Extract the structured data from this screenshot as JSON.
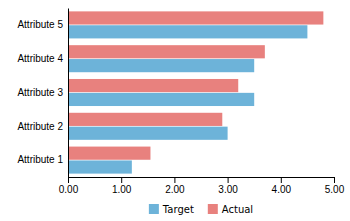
{
  "chart_data": {
    "type": "bar",
    "orientation": "horizontal",
    "categories": [
      "Attribute 1",
      "Attribute 2",
      "Attribute 3",
      "Attribute 4",
      "Attribute 5"
    ],
    "series": [
      {
        "name": "Target",
        "color": "#6db3d9",
        "values": [
          1.2,
          3.0,
          3.5,
          3.5,
          4.5
        ]
      },
      {
        "name": "Actual",
        "color": "#e8817e",
        "values": [
          1.55,
          2.9,
          3.2,
          3.7,
          4.8
        ]
      }
    ],
    "xlim": [
      0,
      5.0
    ],
    "xticks": [
      {
        "value": 0.0,
        "label": "0.00"
      },
      {
        "value": 1.0,
        "label": "1.00"
      },
      {
        "value": 2.0,
        "label": "2.00"
      },
      {
        "value": 3.0,
        "label": "3.00"
      },
      {
        "value": 4.0,
        "label": "4.00"
      },
      {
        "value": 5.0,
        "label": "5.00"
      }
    ],
    "grid": false,
    "legend": "bottom"
  }
}
